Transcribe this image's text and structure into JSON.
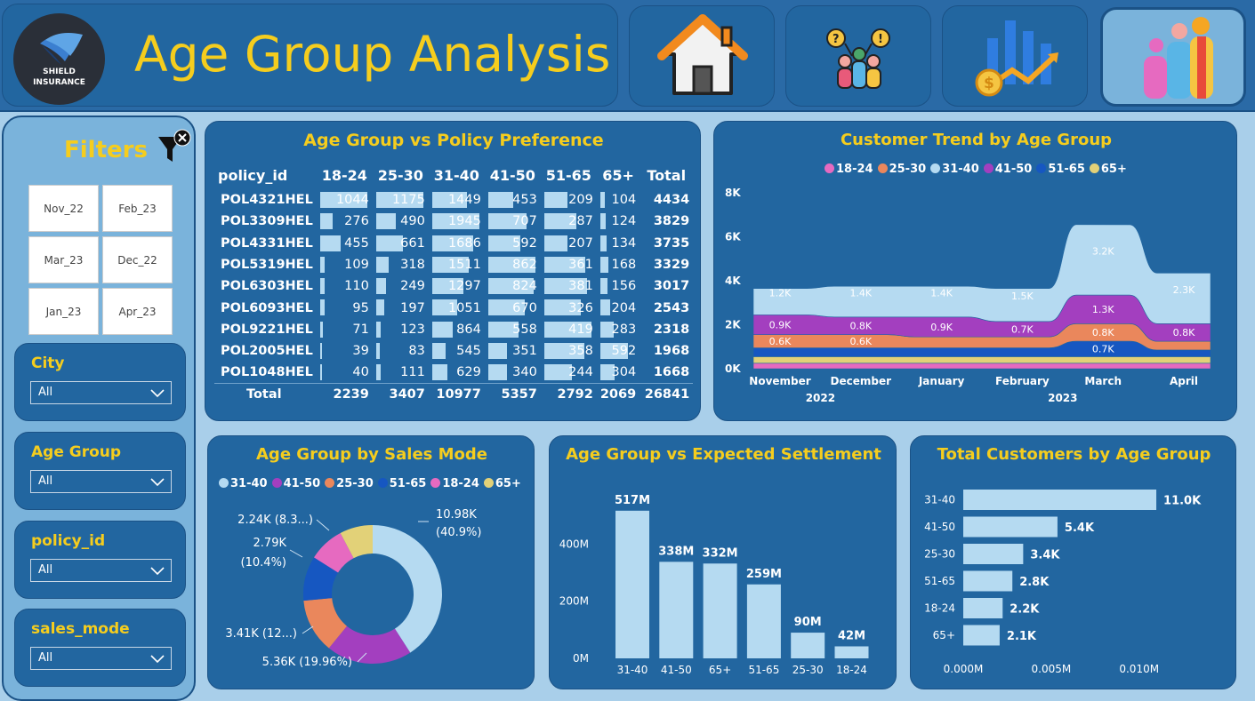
{
  "header": {
    "title": "Age Group Analysis",
    "logo_text_line1": "SHIELD",
    "logo_text_line2": "INSURANCE",
    "nav": [
      {
        "name": "home",
        "icon": "home-icon"
      },
      {
        "name": "customers",
        "icon": "people-question-icon"
      },
      {
        "name": "revenue",
        "icon": "revenue-chart-icon"
      },
      {
        "name": "age-group",
        "icon": "family-icon"
      }
    ]
  },
  "sidebar": {
    "title": "Filters",
    "months": [
      "Nov_22",
      "Feb_23",
      "Mar_23",
      "Dec_22",
      "Jan_23",
      "Apr_23"
    ],
    "slicers": [
      {
        "label": "City",
        "value": "All"
      },
      {
        "label": "Age Group",
        "value": "All"
      },
      {
        "label": "policy_id",
        "value": "All"
      },
      {
        "label": "sales_mode",
        "value": "All"
      }
    ]
  },
  "policy_table": {
    "title": "Age Group vs Policy Preference",
    "columns": [
      "policy_id",
      "18-24",
      "25-30",
      "31-40",
      "41-50",
      "51-65",
      "65+",
      "Total"
    ],
    "rows": [
      {
        "policy_id": "POL4321HEL",
        "values": [
          1044,
          1175,
          1449,
          453,
          209,
          104
        ],
        "total": 4434
      },
      {
        "policy_id": "POL3309HEL",
        "values": [
          276,
          490,
          1945,
          707,
          287,
          124
        ],
        "total": 3829
      },
      {
        "policy_id": "POL4331HEL",
        "values": [
          455,
          661,
          1686,
          592,
          207,
          134
        ],
        "total": 3735
      },
      {
        "policy_id": "POL5319HEL",
        "values": [
          109,
          318,
          1511,
          862,
          361,
          168
        ],
        "total": 3329
      },
      {
        "policy_id": "POL6303HEL",
        "values": [
          110,
          249,
          1297,
          824,
          381,
          156
        ],
        "total": 3017
      },
      {
        "policy_id": "POL6093HEL",
        "values": [
          95,
          197,
          1051,
          670,
          326,
          204
        ],
        "total": 2543
      },
      {
        "policy_id": "POL9221HEL",
        "values": [
          71,
          123,
          864,
          558,
          419,
          283
        ],
        "total": 2318
      },
      {
        "policy_id": "POL2005HEL",
        "values": [
          39,
          83,
          545,
          351,
          358,
          592
        ],
        "total": 1968
      },
      {
        "policy_id": "POL1048HEL",
        "values": [
          40,
          111,
          629,
          340,
          244,
          304
        ],
        "total": 1668
      }
    ],
    "total_label": "Total",
    "totals": [
      2239,
      3407,
      10977,
      5357,
      2792,
      2069,
      26841
    ]
  },
  "chart_data": [
    {
      "id": "customer-trend",
      "type": "area",
      "title": "Customer Trend by Age Group",
      "x": [
        "November",
        "December",
        "January",
        "February",
        "March",
        "April"
      ],
      "x_groups": [
        {
          "label": "2022",
          "months": [
            "November",
            "December"
          ]
        },
        {
          "label": "2023",
          "months": [
            "January",
            "February",
            "March",
            "April"
          ]
        }
      ],
      "y_ticks": [
        "0K",
        "2K",
        "4K",
        "6K",
        "8K"
      ],
      "ylim": [
        0,
        8000
      ],
      "legend": [
        "18-24",
        "25-30",
        "31-40",
        "41-50",
        "51-65",
        "65+"
      ],
      "series": [
        {
          "name": "18-24",
          "color": "#e66ac0",
          "values": [
            250,
            250,
            250,
            250,
            250,
            250
          ]
        },
        {
          "name": "25-30",
          "color": "#ea875c",
          "values": [
            600,
            600,
            500,
            500,
            800,
            400
          ]
        },
        {
          "name": "31-40",
          "color": "#b5daf1",
          "values": [
            1200,
            1400,
            1400,
            1500,
            3200,
            2300
          ]
        },
        {
          "name": "41-50",
          "color": "#a33fbf",
          "values": [
            900,
            800,
            900,
            700,
            1300,
            800
          ]
        },
        {
          "name": "51-65",
          "color": "#1657c1",
          "values": [
            400,
            400,
            400,
            400,
            700,
            300
          ]
        },
        {
          "name": "65+",
          "color": "#e2d178",
          "values": [
            300,
            300,
            300,
            300,
            300,
            300
          ]
        }
      ],
      "data_labels": [
        {
          "series": "31-40",
          "labels": [
            "1.2K",
            "1.4K",
            "1.4K",
            "1.5K",
            "3.2K",
            "2.3K"
          ]
        },
        {
          "series": "41-50",
          "labels": [
            "0.9K",
            "0.8K",
            "0.9K",
            "0.7K",
            "1.3K",
            "0.8K"
          ]
        },
        {
          "series": "25-30",
          "labels": [
            "0.6K",
            "0.6K",
            "",
            "",
            "0.8K",
            ""
          ]
        },
        {
          "series": "51-65",
          "labels": [
            "",
            "",
            "",
            "",
            "0.7K",
            ""
          ]
        }
      ]
    },
    {
      "id": "sales-mode-donut",
      "type": "pie",
      "title": "Age Group by Sales Mode",
      "legend": [
        "31-40",
        "41-50",
        "25-30",
        "51-65",
        "18-24",
        "65+"
      ],
      "slices": [
        {
          "name": "31-40",
          "value": 10.98,
          "percent": 40.9,
          "color": "#b5daf1",
          "label_l1": "10.98K",
          "label_l2": "(40.9%)"
        },
        {
          "name": "41-50",
          "value": 5.36,
          "percent": 19.96,
          "color": "#a33fbf",
          "label_l1": "5.36K (19.96%)",
          "label_l2": ""
        },
        {
          "name": "25-30",
          "value": 3.41,
          "percent": 12.7,
          "color": "#ea875c",
          "label_l1": "3.41K (12...)",
          "label_l2": ""
        },
        {
          "name": "51-65",
          "value": 2.79,
          "percent": 10.4,
          "color": "#1657c1",
          "label_l1": "2.79K",
          "label_l2": "(10.4%)"
        },
        {
          "name": "18-24",
          "value": 2.24,
          "percent": 8.3,
          "color": "#e66ac0",
          "label_l1": "2.24K (8.3...)",
          "label_l2": ""
        },
        {
          "name": "65+",
          "value": 2.07,
          "percent": 7.7,
          "color": "#e2d178",
          "label_l1": "",
          "label_l2": ""
        }
      ]
    },
    {
      "id": "expected-settlement",
      "type": "bar",
      "title": "Age Group vs Expected Settlement",
      "categories": [
        "31-40",
        "41-50",
        "65+",
        "51-65",
        "25-30",
        "18-24"
      ],
      "values": [
        517,
        338,
        332,
        259,
        90,
        42
      ],
      "value_labels": [
        "517M",
        "338M",
        "332M",
        "259M",
        "90M",
        "42M"
      ],
      "y_ticks": [
        "0M",
        "200M",
        "400M"
      ],
      "ylim": [
        0,
        560
      ],
      "color": "#b5daf1"
    },
    {
      "id": "total-customers",
      "type": "bar",
      "orientation": "horizontal",
      "title": "Total Customers by Age Group",
      "categories": [
        "31-40",
        "41-50",
        "25-30",
        "51-65",
        "18-24",
        "65+"
      ],
      "values": [
        10977,
        5357,
        3407,
        2792,
        2239,
        2069
      ],
      "value_labels": [
        "11.0K",
        "5.4K",
        "3.4K",
        "2.8K",
        "2.2K",
        "2.1K"
      ],
      "x_ticks": [
        "0.000M",
        "0.005M",
        "0.010M"
      ],
      "xlim": [
        0,
        0.0132
      ],
      "color": "#b5daf1"
    }
  ]
}
